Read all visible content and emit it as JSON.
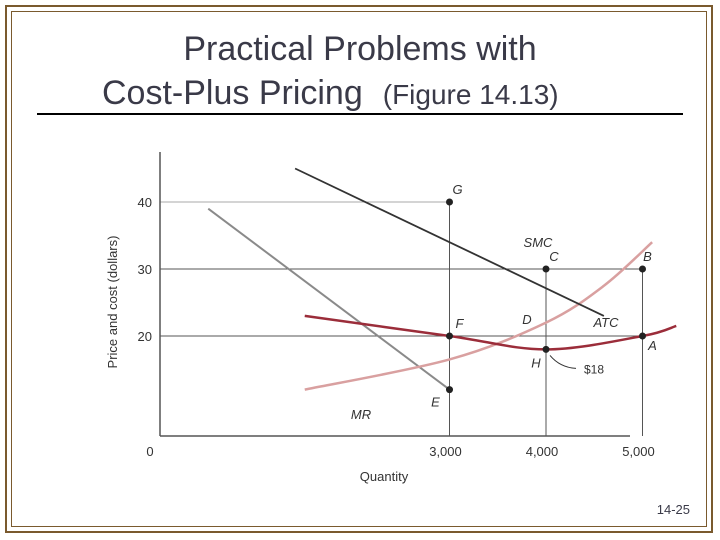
{
  "title": {
    "line1": "Practical Problems with",
    "line2": "Cost-Plus Pricing",
    "line2_sub": "(Figure 14.13)"
  },
  "slide_number": "14-25",
  "chart_data": {
    "type": "line",
    "title": "",
    "xlabel": "Quantity",
    "ylabel": "Price and cost (dollars)",
    "x_ticks": [
      "0",
      "3,000",
      "4,000",
      "5,000"
    ],
    "y_ticks": [
      "40",
      "30",
      "20"
    ],
    "series": [
      {
        "name": "MR",
        "color": "#8a8a8a",
        "x": [
          500,
          3000
        ],
        "y": [
          39,
          12
        ]
      },
      {
        "name": "SMC",
        "color": "#d9a0a0",
        "x": [
          1500,
          3000,
          4000,
          4600,
          5100
        ],
        "y": [
          12,
          16.5,
          22,
          27.5,
          34
        ]
      },
      {
        "name": "ATC",
        "color": "#9b2d3a",
        "x": [
          1500,
          3000,
          4000,
          5000,
          5350
        ],
        "y": [
          23,
          20,
          18,
          20,
          21.5
        ]
      },
      {
        "name": "D",
        "color": "#333333",
        "x": [
          1400,
          4600
        ],
        "y": [
          45,
          23
        ]
      }
    ],
    "points": [
      {
        "label": "G",
        "x": 3000,
        "y": 40
      },
      {
        "label": "C",
        "x": 4000,
        "y": 30
      },
      {
        "label": "B",
        "x": 5000,
        "y": 30
      },
      {
        "label": "F",
        "x": 3000,
        "y": 20
      },
      {
        "label": "H",
        "x": 4000,
        "y": 18
      },
      {
        "label": "A",
        "x": 5000,
        "y": 20
      },
      {
        "label": "E",
        "x": 3000,
        "y": 12
      }
    ],
    "annotations": [
      "$18"
    ],
    "curve_labels": [
      "SMC",
      "ATC",
      "MR",
      "D"
    ]
  }
}
